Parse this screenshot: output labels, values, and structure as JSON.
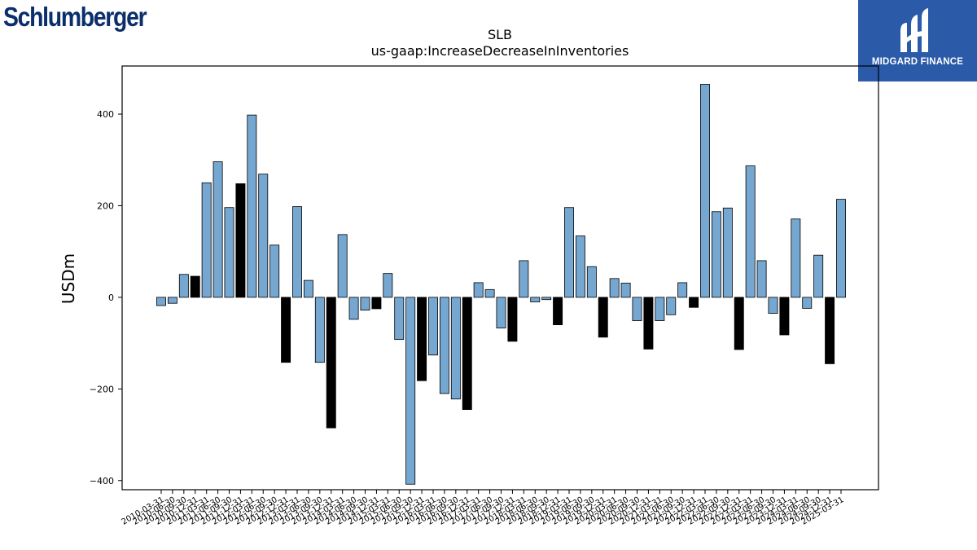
{
  "logos": {
    "left_text": "Schlumberger",
    "right_text": "MIDGARD FINANCE",
    "right_bg": "#2a5aa8",
    "left_color": "#0b2f6b"
  },
  "chart_data": {
    "type": "bar",
    "title": "SLB",
    "subtitle": "us-gaap:IncreaseDecreaseInInventories",
    "ylabel": "USDm",
    "xlabel": "",
    "ylim": [
      -420,
      505
    ],
    "yticks": [
      -400,
      -200,
      0,
      200,
      400
    ],
    "grid": false,
    "bar_color": "#75a7d0",
    "highlight_color": "#000000",
    "categories": [
      "2010-03-31",
      "2010-06-30",
      "2010-09-30",
      "2010-12-31",
      "2011-03-31",
      "2011-06-30",
      "2011-09-30",
      "2011-12-31",
      "2012-03-31",
      "2012-06-30",
      "2012-09-30",
      "2012-12-31",
      "2013-03-31",
      "2013-06-30",
      "2013-09-30",
      "2013-12-31",
      "2014-03-31",
      "2014-06-30",
      "2014-09-30",
      "2014-12-31",
      "2015-03-31",
      "2015-06-30",
      "2015-09-30",
      "2015-12-31",
      "2016-03-31",
      "2016-06-30",
      "2016-09-30",
      "2016-12-31",
      "2017-03-31",
      "2017-06-30",
      "2017-09-30",
      "2017-12-31",
      "2018-03-31",
      "2018-06-30",
      "2018-09-30",
      "2018-12-31",
      "2019-03-31",
      "2019-06-30",
      "2019-09-30",
      "2019-12-31",
      "2020-03-31",
      "2020-06-30",
      "2020-09-30",
      "2020-12-31",
      "2021-03-31",
      "2021-06-30",
      "2021-09-30",
      "2021-12-31",
      "2022-03-31",
      "2022-06-30",
      "2022-09-30",
      "2022-12-31",
      "2023-03-31",
      "2023-06-30",
      "2023-09-30",
      "2023-12-31",
      "2024-03-31",
      "2024-06-30",
      "2024-09-30",
      "2024-12-31",
      "2025-03-31"
    ],
    "values": [
      -18,
      -13,
      50,
      46,
      250,
      296,
      196,
      248,
      398,
      269,
      114,
      -142,
      198,
      37,
      -142,
      -285,
      137,
      -48,
      -28,
      -25,
      52,
      -92,
      -408,
      -182,
      -126,
      -210,
      -222,
      -245,
      32,
      17,
      -67,
      -96,
      80,
      -10,
      -5,
      -60,
      196,
      134,
      67,
      -87,
      41,
      31,
      -51,
      -113,
      -51,
      -38,
      32,
      -22,
      465,
      187,
      195,
      -114,
      287,
      80,
      -35,
      -82,
      171,
      -24,
      92,
      -145,
      214
    ],
    "highlight": [
      false,
      false,
      false,
      true,
      false,
      false,
      false,
      true,
      false,
      false,
      false,
      true,
      false,
      false,
      false,
      true,
      false,
      false,
      false,
      true,
      false,
      false,
      false,
      true,
      false,
      false,
      false,
      true,
      false,
      false,
      false,
      true,
      false,
      false,
      false,
      true,
      false,
      false,
      false,
      true,
      false,
      false,
      false,
      true,
      false,
      false,
      false,
      true,
      false,
      false,
      false,
      true,
      false,
      false,
      false,
      true,
      false,
      false,
      false,
      true,
      false
    ]
  }
}
